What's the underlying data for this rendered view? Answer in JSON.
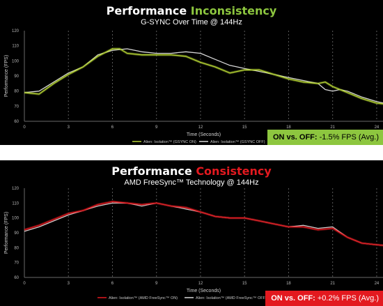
{
  "chart_data": [
    {
      "type": "line",
      "title": "Performance",
      "title_accent": "Inconsistency",
      "subtitle": "G-SYNC Over Time @ 144Hz",
      "xlabel": "Time (Seconds)",
      "ylabel": "Performance (FPS)",
      "xlim": [
        0,
        25
      ],
      "ylim": [
        60,
        120
      ],
      "xticks": [
        0,
        3,
        6,
        9,
        12,
        15,
        18,
        21,
        24
      ],
      "yticks": [
        60,
        70,
        80,
        90,
        100,
        110,
        120
      ],
      "grid": "dashed vertical lines every 3 seconds",
      "legend": "bottom-center",
      "badge": {
        "strong": "ON vs. OFF:",
        "rest": " -1.5% FPS (Avg.)"
      },
      "colors": {
        "accent": "#8dc63f",
        "series_on": "#b5d334",
        "series_off": "#d8d8d8",
        "badge_bg": "#8dc63f",
        "badge_text": "#000000"
      },
      "series": [
        {
          "name": "Alien: Isolation™ (GSYNC ON)",
          "x": [
            0,
            1,
            2,
            3,
            4,
            5,
            6,
            6.5,
            7,
            8,
            9,
            10,
            11,
            12,
            13,
            14,
            15,
            16,
            17,
            18,
            19,
            20,
            20.5,
            21,
            21.5,
            22,
            23,
            24,
            25
          ],
          "y": [
            79,
            78,
            85,
            91,
            96,
            103,
            108,
            108,
            105,
            104,
            104,
            104,
            103,
            99,
            96,
            92,
            94,
            94,
            91,
            88,
            86,
            85,
            86,
            83,
            81,
            79,
            75,
            72,
            71
          ]
        },
        {
          "name": "Alien: Isolation™ (GSYNC OFF)",
          "x": [
            0,
            1,
            2,
            3,
            4,
            5,
            6,
            7,
            8,
            9,
            10,
            11,
            12,
            13,
            14,
            15,
            16,
            17,
            18,
            19,
            20,
            20.5,
            21,
            21.5,
            22,
            23,
            24,
            25
          ],
          "y": [
            79,
            80,
            86,
            92,
            96,
            104,
            107,
            108,
            106,
            105,
            105,
            106,
            105,
            101,
            97,
            95,
            93,
            91,
            89,
            87,
            85,
            81,
            80,
            81,
            80,
            76,
            73,
            71
          ]
        }
      ]
    },
    {
      "type": "line",
      "title": "Performance",
      "title_accent": "Consistency",
      "subtitle": "AMD FreeSync™ Technology @ 144Hz",
      "xlabel": "Time (Seconds)",
      "ylabel": "Performance (FPS)",
      "xlim": [
        0,
        25
      ],
      "ylim": [
        60,
        120
      ],
      "xticks": [
        0,
        3,
        6,
        9,
        12,
        15,
        18,
        21,
        24
      ],
      "yticks": [
        60,
        70,
        80,
        90,
        100,
        110,
        120
      ],
      "grid": "dashed vertical lines every 3 seconds",
      "legend": "bottom-center",
      "badge": {
        "strong": "ON vs. OFF:",
        "rest": " +0.2% FPS (Avg.)"
      },
      "colors": {
        "accent": "#e3191f",
        "series_on": "#e3191f",
        "series_off": "#d8d8d8",
        "badge_bg": "#e3191f",
        "badge_text": "#ffffff"
      },
      "series": [
        {
          "name": "Alien: Isolation™ (AMD FreeSync™ ON)",
          "x": [
            0,
            1,
            2,
            3,
            4,
            5,
            6,
            7,
            8,
            9,
            10,
            11,
            12,
            13,
            14,
            15,
            16,
            17,
            18,
            19,
            20,
            21,
            22,
            23,
            24,
            25
          ],
          "y": [
            92,
            95,
            99,
            103,
            105,
            109,
            111,
            110,
            109,
            110,
            108,
            107,
            104,
            101,
            100,
            100,
            98,
            96,
            94,
            94,
            92,
            93,
            87,
            83,
            82,
            81
          ]
        },
        {
          "name": "Alien: Isolation™ (AMD FreeSync™ OFF)",
          "x": [
            0,
            1,
            2,
            3,
            4,
            5,
            6,
            7,
            8,
            9,
            10,
            11,
            12,
            13,
            14,
            15,
            16,
            17,
            18,
            19,
            20,
            21,
            22,
            23,
            24,
            25
          ],
          "y": [
            91,
            94,
            98,
            102,
            105,
            108,
            110,
            110,
            108,
            110,
            108,
            106,
            104,
            101,
            100,
            100,
            98,
            96,
            94,
            95,
            93,
            94,
            87,
            83,
            82,
            81
          ]
        }
      ]
    }
  ]
}
